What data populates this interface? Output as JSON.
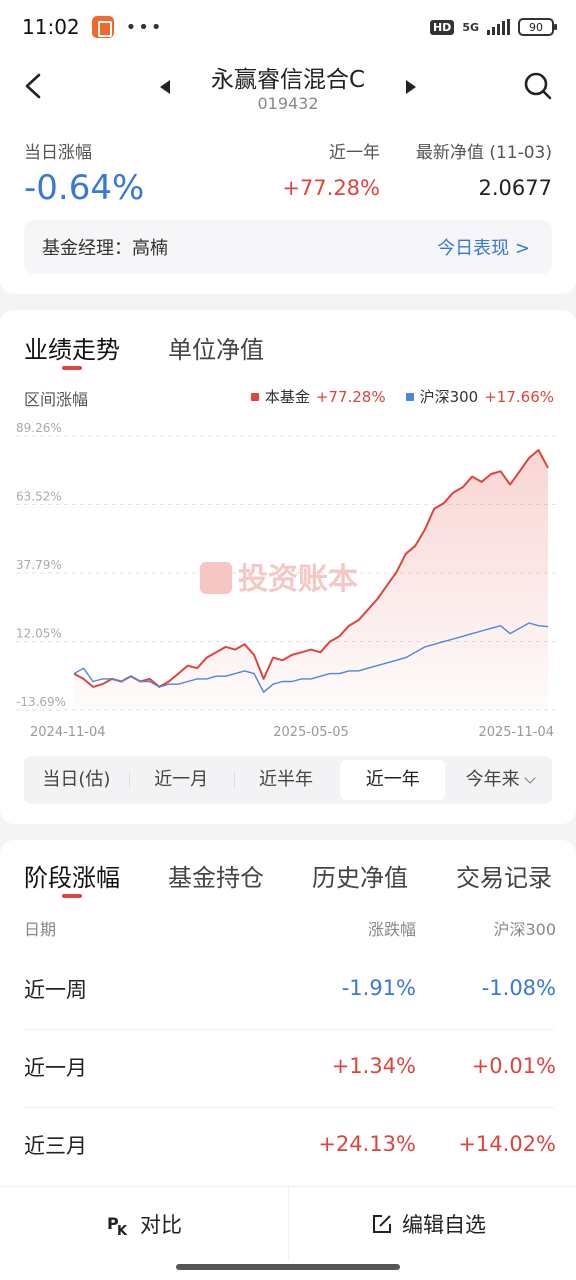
{
  "status_bar": {
    "time": "11:02",
    "network": "5G",
    "hd": "HD",
    "battery": "90",
    "more": "•••"
  },
  "header": {
    "title": "永赢睿信混合C",
    "code": "019432"
  },
  "summary": {
    "daily_change_label": "当日涨幅",
    "daily_change_value": "-0.64%",
    "year_label": "近一年",
    "year_value": "+77.28%",
    "nav_label": "最新净值 (11-03)",
    "nav_value": "2.0677",
    "manager_label": "基金经理：高楠",
    "today_link": "今日表现 >"
  },
  "chart_section": {
    "tabs": [
      "业绩走势",
      "单位净值"
    ],
    "range_label": "区间涨幅",
    "legend": [
      {
        "name": "本基金",
        "value": "+77.28%",
        "color": "#e0443c"
      },
      {
        "name": "沪深300",
        "value": "+17.66%",
        "color": "#4f86d9"
      }
    ],
    "watermark": "投资账本",
    "periods": [
      "当日(估)",
      "近一月",
      "近半年",
      "近一年",
      "今年来"
    ],
    "active_period": "近一年"
  },
  "chart_data": {
    "type": "line",
    "ylabel": "",
    "xlabel": "",
    "y_ticks": [
      "89.26%",
      "63.52%",
      "37.79%",
      "12.05%",
      "-13.69%"
    ],
    "y_tick_values": [
      89.26,
      63.52,
      37.79,
      12.05,
      -13.69
    ],
    "ylim": [
      -13.69,
      89.26
    ],
    "x_ticks": [
      "2024-11-04",
      "2025-05-05",
      "2025-11-04"
    ],
    "x_tick_positions": [
      0,
      0.5,
      1
    ],
    "grid": true,
    "series": [
      {
        "name": "本基金",
        "color": "#e0443c",
        "fill": true,
        "x": [
          0,
          0.02,
          0.04,
          0.06,
          0.08,
          0.1,
          0.12,
          0.14,
          0.16,
          0.18,
          0.2,
          0.22,
          0.24,
          0.26,
          0.28,
          0.3,
          0.32,
          0.34,
          0.36,
          0.38,
          0.4,
          0.42,
          0.44,
          0.46,
          0.48,
          0.5,
          0.52,
          0.54,
          0.56,
          0.58,
          0.6,
          0.62,
          0.64,
          0.66,
          0.68,
          0.7,
          0.72,
          0.74,
          0.76,
          0.78,
          0.8,
          0.82,
          0.84,
          0.86,
          0.88,
          0.9,
          0.92,
          0.94,
          0.96,
          0.98,
          1.0
        ],
        "values": [
          0,
          -2,
          -5,
          -4,
          -2,
          -3,
          -1,
          -3,
          -2,
          -5,
          -3,
          0,
          3,
          2,
          6,
          8,
          10,
          9,
          11,
          7,
          -2,
          6,
          5,
          7,
          8,
          9,
          8,
          12,
          14,
          18,
          20,
          24,
          28,
          33,
          38,
          45,
          48,
          54,
          62,
          64,
          68,
          70,
          74,
          72,
          75,
          76,
          71,
          76,
          81,
          84,
          77.28
        ]
      },
      {
        "name": "沪深300",
        "color": "#4f86d9",
        "fill": false,
        "x": [
          0,
          0.02,
          0.04,
          0.06,
          0.08,
          0.1,
          0.12,
          0.14,
          0.16,
          0.18,
          0.2,
          0.22,
          0.24,
          0.26,
          0.28,
          0.3,
          0.32,
          0.34,
          0.36,
          0.38,
          0.4,
          0.42,
          0.44,
          0.46,
          0.48,
          0.5,
          0.52,
          0.54,
          0.56,
          0.58,
          0.6,
          0.62,
          0.64,
          0.66,
          0.68,
          0.7,
          0.72,
          0.74,
          0.76,
          0.78,
          0.8,
          0.82,
          0.84,
          0.86,
          0.88,
          0.9,
          0.92,
          0.94,
          0.96,
          0.98,
          1.0
        ],
        "values": [
          0,
          2,
          -3,
          -2,
          -2,
          -3,
          -1,
          -3,
          -3,
          -5,
          -4,
          -4,
          -3,
          -2,
          -2,
          -1,
          -1,
          0,
          1,
          0,
          -7,
          -4,
          -3,
          -3,
          -2,
          -2,
          -1,
          0,
          0,
          1,
          1,
          2,
          3,
          4,
          5,
          6,
          8,
          10,
          11,
          12,
          13,
          14,
          15,
          16,
          17,
          18,
          15,
          17,
          19,
          18,
          17.66
        ]
      }
    ]
  },
  "stage_section": {
    "tabs": [
      "阶段涨幅",
      "基金持仓",
      "历史净值",
      "交易记录"
    ],
    "columns": [
      "日期",
      "涨跌幅",
      "沪深300"
    ],
    "rows": [
      {
        "period": "近一周",
        "fund": "-1.91%",
        "index": "-1.08%",
        "fund_sign": "neg",
        "index_sign": "neg"
      },
      {
        "period": "近一月",
        "fund": "+1.34%",
        "index": "+0.01%",
        "fund_sign": "pos",
        "index_sign": "pos"
      },
      {
        "period": "近三月",
        "fund": "+24.13%",
        "index": "+14.02%",
        "fund_sign": "pos",
        "index_sign": "pos"
      }
    ]
  },
  "bottom_bar": {
    "compare_label": "对比",
    "edit_label": "编辑自选"
  }
}
